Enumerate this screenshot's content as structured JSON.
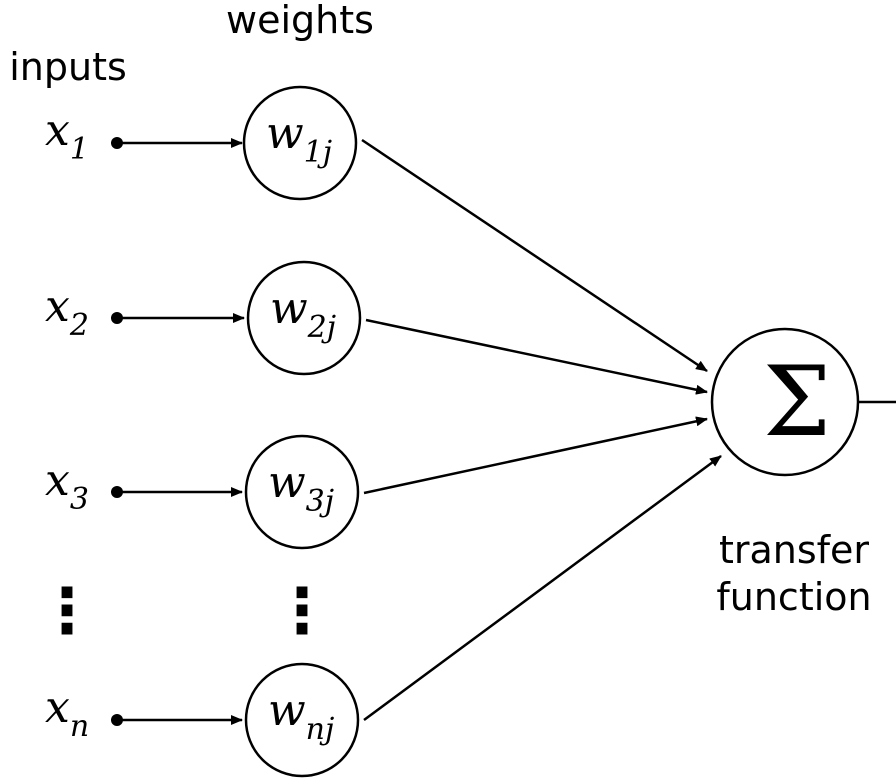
{
  "headers": {
    "inputs": "inputs",
    "weights": "weights"
  },
  "rows": [
    {
      "input_var": "x",
      "input_sub": "1",
      "weight_var": "w",
      "weight_sub": "1j"
    },
    {
      "input_var": "x",
      "input_sub": "2",
      "weight_var": "w",
      "weight_sub": "2j"
    },
    {
      "input_var": "x",
      "input_sub": "3",
      "weight_var": "w",
      "weight_sub": "3j"
    },
    {
      "input_var": "x",
      "input_sub": "n",
      "weight_var": "w",
      "weight_sub": "nj"
    }
  ],
  "ellipsis": "⋮",
  "sum_node": {
    "symbol": "Σ",
    "label_line1": "transfer",
    "label_line2": "function"
  }
}
